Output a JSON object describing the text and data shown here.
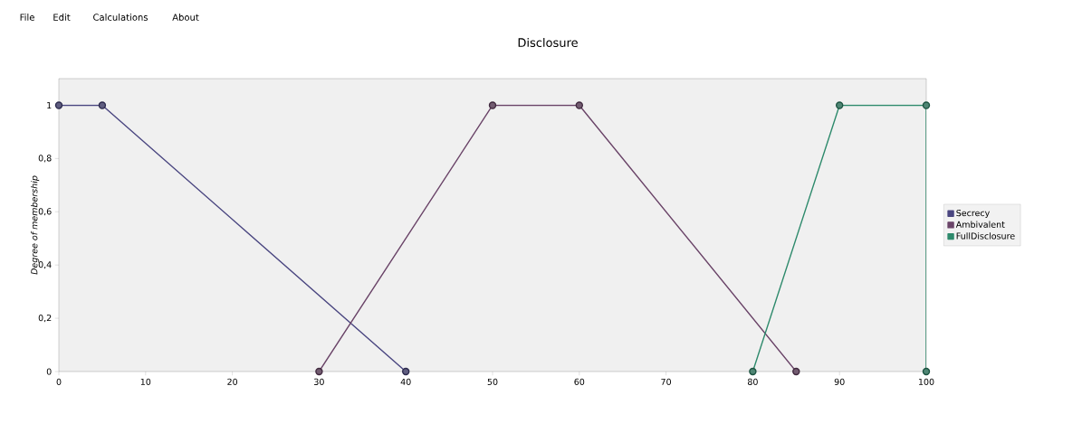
{
  "chart_data": {
    "type": "line",
    "title": "Disclosure",
    "ylabel": "Degree of membership",
    "annotations": [
      "File",
      "Edit",
      "Calculations",
      "About"
    ],
    "series": [
      {
        "name": "Secrecy",
        "color": "#4a4680",
        "x": [
          0,
          5,
          40
        ],
        "values": [
          1,
          1,
          0
        ]
      },
      {
        "name": "Ambivalent",
        "color": "#6a4468",
        "x": [
          30,
          50,
          60,
          85
        ],
        "values": [
          0,
          1,
          1,
          0
        ]
      },
      {
        "name": "FullDisclosure",
        "color": "#2e8a6c",
        "x": [
          80,
          90,
          100,
          100
        ],
        "values": [
          0,
          1,
          1,
          0
        ]
      }
    ],
    "xlim": [
      0,
      100
    ],
    "ylim": [
      0,
      1.1
    ],
    "xticks": [
      0,
      10,
      20,
      30,
      40,
      50,
      60,
      70,
      80,
      90,
      100
    ],
    "yticks": [
      0,
      {
        "value": 0.2,
        "label": "0,2"
      },
      {
        "value": 0.4,
        "label": "0,4"
      },
      {
        "value": 0.6,
        "label": "0,6"
      },
      {
        "value": 0.8,
        "label": "0,8"
      },
      1
    ],
    "marker": "circle",
    "line_style": "solid",
    "legend": "right",
    "grid": false
  }
}
